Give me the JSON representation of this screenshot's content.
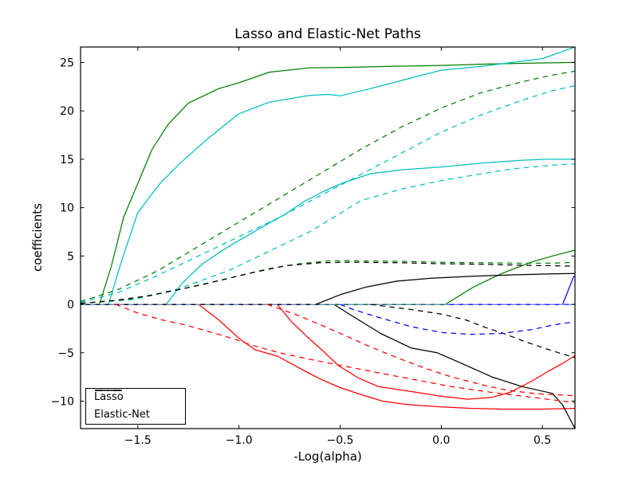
{
  "figure": {
    "title": "Lasso and Elastic-Net Paths",
    "xlabel": "-Log(alpha)",
    "ylabel": "coefficients"
  },
  "legend": {
    "items": [
      {
        "label": "Lasso",
        "style": "solid"
      },
      {
        "label": "Elastic-Net",
        "style": "dashed"
      }
    ]
  },
  "colors": {
    "blue": "#0000ff",
    "red": "#ff0000",
    "green": "#008000",
    "cyan": "#00bfbf",
    "black": "#000000",
    "zero_dash_overlay": "#8899ff",
    "spine": "#000000",
    "background": "#ffffff"
  },
  "chart_data": {
    "type": "line",
    "title": "Lasso and Elastic-Net Paths",
    "xlabel": "-Log(alpha)",
    "ylabel": "coefficients",
    "xlim": [
      -1.783,
      0.661
    ],
    "ylim": [
      -12.84,
      26.6
    ],
    "xticks": [
      -1.5,
      -1.0,
      -0.5,
      0.0,
      0.5
    ],
    "yticks": [
      -10,
      -5,
      0,
      5,
      10,
      15,
      20,
      25
    ],
    "grid": false,
    "legend_position": "lower left",
    "series": [
      {
        "name": "lasso-coef-1",
        "group": "Lasso",
        "style": "solid",
        "color": "#0000ff",
        "points": [
          [
            -1.783,
            0
          ],
          [
            0.661,
            0
          ]
        ]
      },
      {
        "name": "lasso-coef-2",
        "group": "Lasso",
        "style": "solid",
        "color": "#ff0000",
        "points": [
          [
            -1.783,
            0
          ],
          [
            -1.2,
            0
          ],
          [
            -1.1,
            -1.6
          ],
          [
            -1.0,
            -3.5
          ],
          [
            -0.92,
            -4.7
          ],
          [
            -0.81,
            -5.35
          ],
          [
            -0.7,
            -6.6
          ],
          [
            -0.6,
            -7.7
          ],
          [
            -0.5,
            -8.6
          ],
          [
            -0.4,
            -9.3
          ],
          [
            -0.29,
            -10.0
          ],
          [
            -0.17,
            -10.35
          ],
          [
            0.0,
            -10.6
          ],
          [
            0.15,
            -10.75
          ],
          [
            0.3,
            -10.82
          ],
          [
            0.5,
            -10.82
          ],
          [
            0.661,
            -10.75
          ]
        ]
      },
      {
        "name": "lasso-coef-3",
        "group": "Lasso",
        "style": "solid",
        "color": "#008000",
        "points": [
          [
            -1.783,
            0
          ],
          [
            -1.69,
            0
          ],
          [
            -1.63,
            4
          ],
          [
            -1.57,
            9
          ],
          [
            -1.5,
            12.5
          ],
          [
            -1.43,
            16
          ],
          [
            -1.35,
            18.6
          ],
          [
            -1.25,
            20.8
          ],
          [
            -1.1,
            22.3
          ],
          [
            -1.0,
            22.9
          ],
          [
            -0.85,
            24.0
          ],
          [
            -0.65,
            24.45
          ],
          [
            -0.45,
            24.5
          ],
          [
            -0.25,
            24.6
          ],
          [
            0.0,
            24.7
          ],
          [
            0.25,
            24.85
          ],
          [
            0.5,
            24.95
          ],
          [
            0.661,
            25.0
          ]
        ]
      },
      {
        "name": "lasso-coef-4",
        "group": "Lasso",
        "style": "solid",
        "color": "#00bfbf",
        "points": [
          [
            -1.783,
            0
          ],
          [
            -1.36,
            0
          ],
          [
            -1.28,
            2.2
          ],
          [
            -1.18,
            4.2
          ],
          [
            -1.05,
            6.0
          ],
          [
            -0.95,
            7.2
          ],
          [
            -0.86,
            8.3
          ],
          [
            -0.78,
            9.2
          ],
          [
            -0.68,
            10.6
          ],
          [
            -0.58,
            11.7
          ],
          [
            -0.48,
            12.6
          ],
          [
            -0.35,
            13.5
          ],
          [
            -0.2,
            13.9
          ],
          [
            0.0,
            14.2
          ],
          [
            0.2,
            14.6
          ],
          [
            0.4,
            14.9
          ],
          [
            0.52,
            15.0
          ],
          [
            0.661,
            15.0
          ]
        ]
      },
      {
        "name": "lasso-coef-5",
        "group": "Lasso",
        "style": "solid",
        "color": "#000000",
        "points": [
          [
            -1.783,
            0
          ],
          [
            -0.53,
            0
          ],
          [
            -0.44,
            -1.2
          ],
          [
            -0.3,
            -3.0
          ],
          [
            -0.15,
            -4.5
          ],
          [
            -0.02,
            -5.0
          ],
          [
            0.1,
            -6.1
          ],
          [
            0.25,
            -7.5
          ],
          [
            0.4,
            -8.5
          ],
          [
            0.55,
            -9.2
          ],
          [
            0.6,
            -10.4
          ],
          [
            0.661,
            -12.84
          ]
        ]
      },
      {
        "name": "lasso-coef-6",
        "group": "Lasso",
        "style": "solid",
        "color": "#0000ff",
        "points": [
          [
            -1.783,
            0
          ],
          [
            0.6,
            0
          ],
          [
            0.655,
            2.9
          ],
          [
            0.661,
            2.9
          ]
        ]
      },
      {
        "name": "lasso-coef-7",
        "group": "Lasso",
        "style": "solid",
        "color": "#ff0000",
        "points": [
          [
            -1.783,
            0
          ],
          [
            -0.81,
            0
          ],
          [
            -0.74,
            -1.8
          ],
          [
            -0.66,
            -3.4
          ],
          [
            -0.58,
            -4.9
          ],
          [
            -0.51,
            -6.3
          ],
          [
            -0.41,
            -7.6
          ],
          [
            -0.31,
            -8.5
          ],
          [
            -0.15,
            -9.0
          ],
          [
            0.0,
            -9.5
          ],
          [
            0.13,
            -9.8
          ],
          [
            0.25,
            -9.6
          ],
          [
            0.34,
            -9.1
          ],
          [
            0.45,
            -7.9
          ],
          [
            0.53,
            -6.9
          ],
          [
            0.6,
            -6.1
          ],
          [
            0.661,
            -5.3
          ]
        ]
      },
      {
        "name": "lasso-coef-8",
        "group": "Lasso",
        "style": "solid",
        "color": "#008000",
        "points": [
          [
            -1.783,
            0
          ],
          [
            0.02,
            0
          ],
          [
            0.16,
            1.8
          ],
          [
            0.3,
            3.2
          ],
          [
            0.45,
            4.4
          ],
          [
            0.55,
            5.0
          ],
          [
            0.661,
            5.6
          ]
        ]
      },
      {
        "name": "lasso-coef-9",
        "group": "Lasso",
        "style": "solid",
        "color": "#00bfbf",
        "points": [
          [
            -1.783,
            0
          ],
          [
            -1.645,
            0
          ],
          [
            -1.58,
            4.5
          ],
          [
            -1.5,
            9.5
          ],
          [
            -1.39,
            12.5
          ],
          [
            -1.28,
            14.8
          ],
          [
            -1.15,
            17.2
          ],
          [
            -1.0,
            19.7
          ],
          [
            -0.85,
            20.9
          ],
          [
            -0.65,
            21.6
          ],
          [
            -0.56,
            21.7
          ],
          [
            -0.5,
            21.55
          ],
          [
            -0.35,
            22.3
          ],
          [
            -0.15,
            23.4
          ],
          [
            0.0,
            24.2
          ],
          [
            0.2,
            24.6
          ],
          [
            0.35,
            25.0
          ],
          [
            0.5,
            25.4
          ],
          [
            0.661,
            26.6
          ]
        ]
      },
      {
        "name": "lasso-coef-10",
        "group": "Lasso",
        "style": "solid",
        "color": "#000000",
        "points": [
          [
            -1.783,
            0
          ],
          [
            -0.62,
            0
          ],
          [
            -0.5,
            1.0
          ],
          [
            -0.37,
            1.8
          ],
          [
            -0.22,
            2.4
          ],
          [
            -0.05,
            2.7
          ],
          [
            0.15,
            2.9
          ],
          [
            0.35,
            3.05
          ],
          [
            0.55,
            3.15
          ],
          [
            0.661,
            3.2
          ]
        ]
      },
      {
        "name": "enet-coef-1",
        "group": "Elastic-Net",
        "style": "dashed",
        "color": "#8899ff",
        "points": [
          [
            -1.783,
            0
          ],
          [
            0.661,
            0
          ]
        ]
      },
      {
        "name": "enet-coef-2",
        "group": "Elastic-Net",
        "style": "dashed",
        "color": "#ff0000",
        "points": [
          [
            -1.61,
            0
          ],
          [
            -1.5,
            -0.9
          ],
          [
            -1.38,
            -1.6
          ],
          [
            -1.27,
            -2.1
          ],
          [
            -1.15,
            -2.8
          ],
          [
            -1.02,
            -3.6
          ],
          [
            -0.94,
            -4.2
          ],
          [
            -0.8,
            -5.0
          ],
          [
            -0.62,
            -5.8
          ],
          [
            -0.45,
            -6.5
          ],
          [
            -0.28,
            -7.2
          ],
          [
            -0.1,
            -7.9
          ],
          [
            0.05,
            -8.5
          ],
          [
            0.25,
            -9.1
          ],
          [
            0.45,
            -9.6
          ],
          [
            0.6,
            -10.0
          ],
          [
            0.661,
            -10.15
          ]
        ]
      },
      {
        "name": "enet-coef-3",
        "group": "Elastic-Net",
        "style": "dashed",
        "color": "#008000",
        "points": [
          [
            -1.783,
            0.3
          ],
          [
            -1.6,
            1.5
          ],
          [
            -1.4,
            3.5
          ],
          [
            -1.2,
            6.0
          ],
          [
            -1.0,
            8.5
          ],
          [
            -0.8,
            11.0
          ],
          [
            -0.6,
            13.5
          ],
          [
            -0.4,
            16.0
          ],
          [
            -0.2,
            18.3
          ],
          [
            0.0,
            20.3
          ],
          [
            0.2,
            21.9
          ],
          [
            0.4,
            23.0
          ],
          [
            0.55,
            23.7
          ],
          [
            0.661,
            24.1
          ]
        ]
      },
      {
        "name": "enet-coef-4",
        "group": "Elastic-Net",
        "style": "dashed",
        "color": "#00bfbf",
        "points": [
          [
            -1.783,
            0.1
          ],
          [
            -1.52,
            0.5
          ],
          [
            -1.3,
            1.6
          ],
          [
            -1.05,
            3.5
          ],
          [
            -0.85,
            5.5
          ],
          [
            -0.65,
            7.5
          ],
          [
            -0.5,
            9.4
          ],
          [
            -0.4,
            10.7
          ],
          [
            -0.2,
            11.9
          ],
          [
            0.0,
            12.8
          ],
          [
            0.2,
            13.5
          ],
          [
            0.35,
            14.0
          ],
          [
            0.55,
            14.4
          ],
          [
            0.661,
            14.5
          ]
        ]
      },
      {
        "name": "enet-coef-5",
        "group": "Elastic-Net",
        "style": "dashed",
        "color": "#000000",
        "points": [
          [
            -0.35,
            0
          ],
          [
            -0.16,
            -0.5
          ],
          [
            0.0,
            -1.0
          ],
          [
            0.12,
            -1.6
          ],
          [
            0.22,
            -2.4
          ],
          [
            0.32,
            -3.1
          ],
          [
            0.42,
            -3.9
          ],
          [
            0.52,
            -4.6
          ],
          [
            0.58,
            -5.0
          ],
          [
            0.661,
            -5.5
          ]
        ]
      },
      {
        "name": "enet-coef-6",
        "group": "Elastic-Net",
        "style": "dashed",
        "color": "#0000ff",
        "points": [
          [
            -0.5,
            0
          ],
          [
            -0.44,
            -0.5
          ],
          [
            -0.3,
            -1.4
          ],
          [
            -0.15,
            -2.3
          ],
          [
            0.0,
            -2.9
          ],
          [
            0.15,
            -3.1
          ],
          [
            0.3,
            -3.0
          ],
          [
            0.45,
            -2.6
          ],
          [
            0.56,
            -2.1
          ],
          [
            0.661,
            -1.8
          ]
        ]
      },
      {
        "name": "enet-coef-7",
        "group": "Elastic-Net",
        "style": "dashed",
        "color": "#ff0000",
        "points": [
          [
            -0.86,
            0
          ],
          [
            -0.7,
            -1.2
          ],
          [
            -0.52,
            -2.8
          ],
          [
            -0.36,
            -4.3
          ],
          [
            -0.22,
            -5.5
          ],
          [
            -0.08,
            -6.6
          ],
          [
            0.05,
            -7.5
          ],
          [
            0.2,
            -8.3
          ],
          [
            0.33,
            -8.9
          ],
          [
            0.48,
            -9.25
          ],
          [
            0.661,
            -9.45
          ]
        ]
      },
      {
        "name": "enet-coef-8",
        "group": "Elastic-Net",
        "style": "dashed",
        "color": "#008000",
        "points": [
          [
            -1.783,
            0.1
          ],
          [
            -1.55,
            0.5
          ],
          [
            -1.3,
            1.5
          ],
          [
            -1.05,
            2.7
          ],
          [
            -0.85,
            3.7
          ],
          [
            -0.7,
            4.2
          ],
          [
            -0.55,
            4.5
          ],
          [
            -0.4,
            4.5
          ],
          [
            -0.2,
            4.45
          ],
          [
            0.0,
            4.35
          ],
          [
            0.2,
            4.3
          ],
          [
            0.4,
            4.25
          ],
          [
            0.55,
            4.25
          ],
          [
            0.661,
            4.35
          ]
        ]
      },
      {
        "name": "enet-coef-9",
        "group": "Elastic-Net",
        "style": "dashed",
        "color": "#00bfbf",
        "points": [
          [
            -1.783,
            0.2
          ],
          [
            -1.6,
            1.2
          ],
          [
            -1.4,
            3.0
          ],
          [
            -1.2,
            5.0
          ],
          [
            -1.0,
            7.0
          ],
          [
            -0.8,
            9.0
          ],
          [
            -0.6,
            11.2
          ],
          [
            -0.4,
            13.4
          ],
          [
            -0.2,
            15.6
          ],
          [
            0.0,
            17.8
          ],
          [
            0.2,
            19.6
          ],
          [
            0.4,
            21.1
          ],
          [
            0.55,
            22.1
          ],
          [
            0.661,
            22.6
          ]
        ]
      },
      {
        "name": "enet-coef-10",
        "group": "Elastic-Net",
        "style": "dashed",
        "color": "#000000",
        "points": [
          [
            -1.783,
            0.1
          ],
          [
            -1.62,
            0.4
          ],
          [
            -1.44,
            0.9
          ],
          [
            -1.18,
            2.05
          ],
          [
            -0.95,
            3.2
          ],
          [
            -0.77,
            4.0
          ],
          [
            -0.6,
            4.3
          ],
          [
            -0.45,
            4.35
          ],
          [
            -0.2,
            4.3
          ],
          [
            0.0,
            4.2
          ],
          [
            0.2,
            4.15
          ],
          [
            0.4,
            4.05
          ],
          [
            0.661,
            3.95
          ]
        ]
      }
    ]
  }
}
